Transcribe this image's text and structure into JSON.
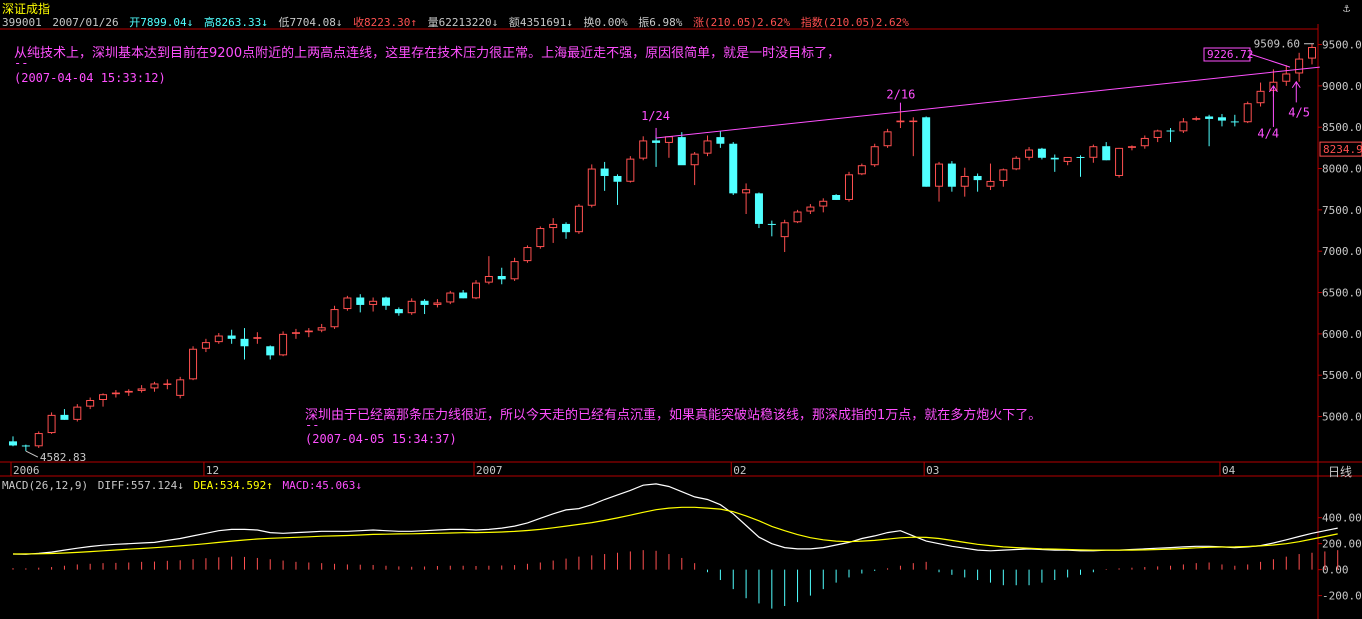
{
  "header": {
    "title": "深证成指",
    "code": "399001",
    "date": "2007/01/26",
    "open": "开7899.04↓",
    "high": "高8263.33↓",
    "low": "低7704.08↓",
    "close": "收8223.30↑",
    "volume": "量62213220↓",
    "amount": "额4351691↓",
    "turnover": "换0.00%",
    "amplitude": "振6.98%",
    "change": "涨(210.05)2.62%",
    "index": "指数(210.05)2.62%"
  },
  "period_label": "日线",
  "annotations": {
    "note1_text": "从纯技术上，深圳基本达到目前在9200点附近的上两高点连线，这里存在技术压力很正常。上海最近走不强，原因很简单，就是一时没目标了，",
    "note1_dash": "--",
    "note1_time": "(2007-04-04 15:33:12)",
    "note2_text": "深圳由于已经离那条压力线很近，所以今天走的已经有点沉重，如果真能突破站稳该线，那深成指的1万点，就在多方炮火下了。",
    "note2_dash": "--",
    "note2_time": "(2007-04-05 15:34:37)",
    "label_124": "1/24",
    "label_216": "2/16",
    "label_44": "4/4",
    "label_45": "4/5",
    "box_value": "9226.72",
    "high_value": "9509.60",
    "low_value": "4582.83",
    "current_value": "8234.9"
  },
  "macd_header": {
    "name": "MACD(26,12,9)",
    "diff": "DIFF:557.124↓",
    "dea": "DEA:534.592↑",
    "macd": "MACD:45.063↓"
  },
  "colors": {
    "up": "#ff5050",
    "down": "#50ffff",
    "magenta": "#ff50ff",
    "diff_line": "#ffffff",
    "dea_line": "#ffff00",
    "axis": "#b40000"
  },
  "chart_data": [
    {
      "type": "candlestick",
      "yticks": [
        5000,
        5500,
        6000,
        6500,
        7000,
        7500,
        8000,
        8500,
        9000,
        9500
      ],
      "ylim": [
        4450,
        9700
      ],
      "x_labels": [
        "2006",
        "12",
        "2007",
        "02",
        "03",
        "04"
      ],
      "x_label_index": [
        0,
        15,
        36,
        56,
        71,
        94
      ],
      "ohlc": [
        [
          4700,
          4760,
          4640,
          4650
        ],
        [
          4650,
          4660,
          4582,
          4640
        ],
        [
          4640,
          4820,
          4620,
          4800
        ],
        [
          4800,
          5050,
          4790,
          5020
        ],
        [
          5020,
          5090,
          4960,
          4960
        ],
        [
          4960,
          5150,
          4940,
          5120
        ],
        [
          5120,
          5230,
          5090,
          5200
        ],
        [
          5200,
          5280,
          5120,
          5270
        ],
        [
          5270,
          5320,
          5230,
          5290
        ],
        [
          5290,
          5330,
          5250,
          5310
        ],
        [
          5310,
          5380,
          5290,
          5340
        ],
        [
          5340,
          5420,
          5300,
          5400
        ],
        [
          5400,
          5450,
          5330,
          5400
        ],
        [
          5250,
          5480,
          5220,
          5450
        ],
        [
          5450,
          5850,
          5440,
          5820
        ],
        [
          5820,
          5940,
          5780,
          5900
        ],
        [
          5900,
          6010,
          5880,
          5980
        ],
        [
          5980,
          6050,
          5880,
          5940
        ],
        [
          5940,
          6070,
          5690,
          5850
        ],
        [
          5940,
          6020,
          5880,
          5960
        ],
        [
          5850,
          5860,
          5690,
          5740
        ],
        [
          5740,
          6030,
          5730,
          6000
        ],
        [
          6000,
          6060,
          5940,
          6020
        ],
        [
          6020,
          6070,
          5960,
          6040
        ],
        [
          6040,
          6120,
          6020,
          6080
        ],
        [
          6080,
          6340,
          6060,
          6300
        ],
        [
          6300,
          6460,
          6280,
          6440
        ],
        [
          6440,
          6480,
          6260,
          6350
        ],
        [
          6350,
          6440,
          6270,
          6400
        ],
        [
          6440,
          6450,
          6290,
          6340
        ],
        [
          6300,
          6320,
          6220,
          6250
        ],
        [
          6250,
          6430,
          6230,
          6400
        ],
        [
          6400,
          6420,
          6240,
          6350
        ],
        [
          6350,
          6420,
          6320,
          6380
        ],
        [
          6380,
          6520,
          6360,
          6500
        ],
        [
          6500,
          6530,
          6430,
          6430
        ],
        [
          6430,
          6650,
          6420,
          6620
        ],
        [
          6620,
          6940,
          6600,
          6700
        ],
        [
          6700,
          6800,
          6600,
          6660
        ],
        [
          6660,
          6920,
          6640,
          6880
        ],
        [
          6880,
          7070,
          6860,
          7050
        ],
        [
          7050,
          7300,
          7030,
          7280
        ],
        [
          7280,
          7400,
          7100,
          7330
        ],
        [
          7330,
          7350,
          7150,
          7230
        ],
        [
          7230,
          7570,
          7210,
          7550
        ],
        [
          7550,
          8050,
          7530,
          8000
        ],
        [
          8000,
          8080,
          7730,
          7910
        ],
        [
          7910,
          7930,
          7560,
          7840
        ],
        [
          7840,
          8150,
          7830,
          8120
        ],
        [
          8120,
          8390,
          8100,
          8340
        ],
        [
          8340,
          8400,
          8020,
          8310
        ],
        [
          8310,
          8340,
          8130,
          8390
        ],
        [
          8380,
          8440,
          8060,
          8040
        ],
        [
          8040,
          8200,
          7800,
          8180
        ],
        [
          8180,
          8400,
          8150,
          8340
        ],
        [
          8380,
          8450,
          8250,
          8300
        ],
        [
          8300,
          8320,
          7680,
          7700
        ],
        [
          7700,
          7820,
          7450,
          7750
        ],
        [
          7700,
          7710,
          7280,
          7330
        ],
        [
          7330,
          7370,
          7180,
          7320
        ],
        [
          7170,
          7380,
          6990,
          7350
        ],
        [
          7350,
          7500,
          7340,
          7480
        ],
        [
          7480,
          7570,
          7450,
          7540
        ],
        [
          7540,
          7640,
          7470,
          7610
        ],
        [
          7680,
          7690,
          7620,
          7620
        ],
        [
          7620,
          7960,
          7600,
          7930
        ],
        [
          7930,
          8060,
          7920,
          8040
        ],
        [
          8040,
          8300,
          8020,
          8270
        ],
        [
          8270,
          8480,
          8250,
          8450
        ],
        [
          8560,
          8700,
          8490,
          8580
        ],
        [
          8580,
          8620,
          8150,
          8580
        ],
        [
          8620,
          8630,
          7780,
          7780
        ],
        [
          7780,
          8080,
          7600,
          8060
        ],
        [
          8060,
          8090,
          7720,
          7780
        ],
        [
          7780,
          8010,
          7660,
          7910
        ],
        [
          7910,
          7940,
          7720,
          7860
        ],
        [
          7780,
          8060,
          7740,
          7850
        ],
        [
          7850,
          8000,
          7780,
          7990
        ],
        [
          7990,
          8150,
          7980,
          8130
        ],
        [
          8130,
          8260,
          8100,
          8230
        ],
        [
          8240,
          8250,
          8110,
          8130
        ],
        [
          8130,
          8170,
          7960,
          8110
        ],
        [
          8080,
          8140,
          8040,
          8140
        ],
        [
          8140,
          8160,
          7900,
          8130
        ],
        [
          8130,
          8290,
          8070,
          8270
        ],
        [
          8270,
          8320,
          8100,
          8100
        ],
        [
          7910,
          8250,
          7890,
          8250
        ],
        [
          8250,
          8280,
          8220,
          8270
        ],
        [
          8270,
          8400,
          8240,
          8370
        ],
        [
          8370,
          8470,
          8320,
          8460
        ],
        [
          8460,
          8490,
          8320,
          8450
        ],
        [
          8450,
          8610,
          8430,
          8570
        ],
        [
          8590,
          8630,
          8580,
          8610
        ],
        [
          8630,
          8650,
          8270,
          8600
        ],
        [
          8620,
          8660,
          8510,
          8580
        ],
        [
          8570,
          8650,
          8510,
          8560
        ],
        [
          8560,
          8810,
          8550,
          8790
        ],
        [
          8790,
          9040,
          8750,
          8940
        ],
        [
          8940,
          9200,
          8870,
          9050
        ],
        [
          9050,
          9250,
          9000,
          9150
        ],
        [
          9150,
          9400,
          9050,
          9330
        ],
        [
          9330,
          9509,
          9260,
          9470
        ]
      ],
      "resistance_line": {
        "from_index": 50,
        "from_value": 8370,
        "to_index": 103,
        "to_value": 9226.72
      }
    },
    {
      "type": "macd",
      "yticks": [
        -200,
        0,
        200,
        400
      ],
      "ylim": [
        -380,
        690
      ],
      "diff": [
        120,
        118,
        125,
        135,
        150,
        165,
        178,
        188,
        195,
        200,
        205,
        210,
        225,
        240,
        260,
        280,
        300,
        310,
        310,
        305,
        285,
        280,
        285,
        290,
        295,
        295,
        295,
        300,
        305,
        300,
        295,
        295,
        300,
        305,
        310,
        310,
        305,
        310,
        320,
        335,
        360,
        395,
        430,
        460,
        470,
        500,
        540,
        575,
        610,
        650,
        660,
        640,
        600,
        560,
        540,
        500,
        430,
        340,
        250,
        200,
        170,
        160,
        160,
        170,
        190,
        210,
        240,
        260,
        285,
        300,
        260,
        220,
        200,
        180,
        165,
        150,
        145,
        150,
        155,
        160,
        155,
        150,
        150,
        145,
        145,
        150,
        150,
        155,
        160,
        165,
        170,
        175,
        180,
        180,
        175,
        170,
        175,
        185,
        205,
        230,
        255,
        280,
        300,
        320
      ],
      "dea": [
        120,
        121,
        122,
        124,
        128,
        133,
        139,
        145,
        151,
        157,
        163,
        169,
        176,
        183,
        191,
        200,
        210,
        220,
        228,
        236,
        241,
        245,
        249,
        253,
        257,
        260,
        263,
        267,
        271,
        273,
        275,
        276,
        278,
        280,
        282,
        284,
        285,
        287,
        290,
        294,
        301,
        310,
        322,
        335,
        348,
        362,
        379,
        398,
        419,
        441,
        461,
        474,
        480,
        480,
        474,
        466,
        446,
        414,
        376,
        333,
        300,
        270,
        246,
        230,
        220,
        215,
        220,
        225,
        235,
        245,
        250,
        248,
        240,
        225,
        210,
        195,
        185,
        175,
        170,
        165,
        160,
        158,
        155,
        152,
        150,
        150,
        150,
        150,
        152,
        155,
        158,
        163,
        168,
        172,
        174,
        175,
        178,
        183,
        190,
        200,
        215,
        235,
        255,
        275
      ],
      "macd": [
        12,
        10,
        15,
        20,
        30,
        40,
        45,
        50,
        52,
        55,
        60,
        62,
        68,
        72,
        80,
        88,
        95,
        100,
        98,
        90,
        80,
        70,
        60,
        55,
        50,
        45,
        40,
        38,
        36,
        30,
        25,
        22,
        24,
        28,
        30,
        30,
        28,
        30,
        32,
        35,
        45,
        55,
        70,
        85,
        100,
        110,
        120,
        130,
        140,
        150,
        145,
        120,
        90,
        50,
        -20,
        -80,
        -150,
        -220,
        -260,
        -300,
        -280,
        -250,
        -200,
        -150,
        -100,
        -60,
        -30,
        -10,
        10,
        30,
        50,
        60,
        -20,
        -40,
        -60,
        -80,
        -100,
        -120,
        -120,
        -120,
        -100,
        -80,
        -60,
        -40,
        -20,
        5,
        10,
        15,
        20,
        25,
        30,
        40,
        50,
        55,
        40,
        30,
        40,
        60,
        80,
        100,
        120,
        130,
        140,
        150
      ],
      "series": [
        {
          "name": "DIFF"
        },
        {
          "name": "DEA"
        },
        {
          "name": "MACD"
        }
      ]
    }
  ]
}
